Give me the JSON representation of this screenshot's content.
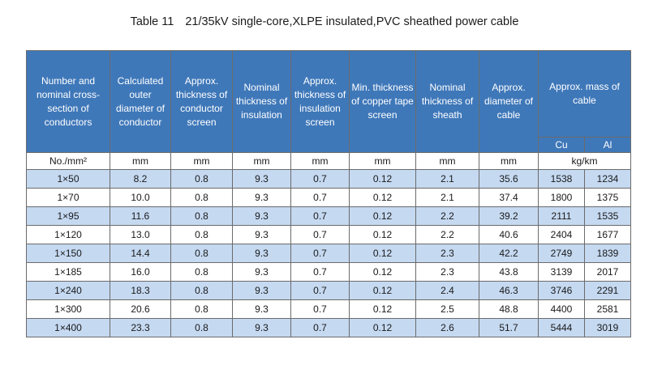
{
  "title": {
    "number": "Table 11",
    "text": "21/35kV single-core,XLPE insulated,PVC sheathed power cable"
  },
  "headers": [
    "Number and nominal cross-section of conductors",
    "Calculated outer diameter of conductor",
    "Approx. thickness of conductor screen",
    "Nominal thickness of insulation",
    "Approx. thickness of insulation screen",
    "Min. thickness of copper tape screen",
    "Nominal thickness of sheath",
    "Approx. diameter of cable",
    "Approx. mass of cable"
  ],
  "mass_subheaders": [
    "Cu",
    "Al"
  ],
  "units": [
    "No./mm²",
    "mm",
    "mm",
    "mm",
    "mm",
    "mm",
    "mm",
    "mm",
    "kg/km"
  ],
  "rows": [
    [
      "1×50",
      "8.2",
      "0.8",
      "9.3",
      "0.7",
      "0.12",
      "2.1",
      "35.6",
      "1538",
      "1234"
    ],
    [
      "1×70",
      "10.0",
      "0.8",
      "9.3",
      "0.7",
      "0.12",
      "2.1",
      "37.4",
      "1800",
      "1375"
    ],
    [
      "1×95",
      "11.6",
      "0.8",
      "9.3",
      "0.7",
      "0.12",
      "2.2",
      "39.2",
      "2111",
      "1535"
    ],
    [
      "1×120",
      "13.0",
      "0.8",
      "9.3",
      "0.7",
      "0.12",
      "2.2",
      "40.6",
      "2404",
      "1677"
    ],
    [
      "1×150",
      "14.4",
      "0.8",
      "9.3",
      "0.7",
      "0.12",
      "2.3",
      "42.2",
      "2749",
      "1839"
    ],
    [
      "1×185",
      "16.0",
      "0.8",
      "9.3",
      "0.7",
      "0.12",
      "2.3",
      "43.8",
      "3139",
      "2017"
    ],
    [
      "1×240",
      "18.3",
      "0.8",
      "9.3",
      "0.7",
      "0.12",
      "2.4",
      "46.3",
      "3746",
      "2291"
    ],
    [
      "1×300",
      "20.6",
      "0.8",
      "9.3",
      "0.7",
      "0.12",
      "2.5",
      "48.8",
      "4400",
      "2581"
    ],
    [
      "1×400",
      "23.3",
      "0.8",
      "9.3",
      "0.7",
      "0.12",
      "2.6",
      "51.7",
      "5444",
      "3019"
    ]
  ],
  "colors": {
    "header_bg": "#3f78b9",
    "header_text": "#ffffff",
    "stripe": "#c5d9f1",
    "border": "#6b6b6b"
  }
}
